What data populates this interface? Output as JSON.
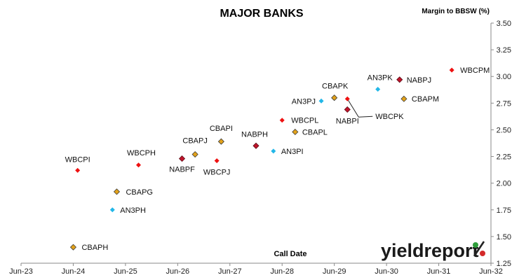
{
  "chart_data": {
    "type": "scatter",
    "title": "MAJOR BANKS",
    "ylabel": "Margin to BBSW (%)",
    "xlabel": "Call Date",
    "ylim": [
      1.25,
      3.5
    ],
    "y_ticks": [
      "1.25",
      "1.50",
      "1.75",
      "2.00",
      "2.25",
      "2.50",
      "2.75",
      "3.00",
      "3.25",
      "3.50"
    ],
    "x_ticks": [
      "Jun-23",
      "Jun-24",
      "Jun-25",
      "Jun-26",
      "Jun-27",
      "Jun-28",
      "Jun-29",
      "Jun-30",
      "Jun-31",
      "Jun-32"
    ],
    "xlim": [
      "Jun-23",
      "Jun-32"
    ],
    "grid": false,
    "colors": {
      "WBC": "#ee1111",
      "NAB": "#c0142b",
      "CBA": "#e3a21a",
      "ANZ": "#22b7e8"
    },
    "points": [
      {
        "label": "CBAPH",
        "x": "Jun-24",
        "y": 1.4,
        "issuer": "CBA"
      },
      {
        "label": "WBCPI",
        "x": "Jul-24",
        "y": 2.12,
        "issuer": "WBC"
      },
      {
        "label": "AN3PH",
        "x": "Mar-25",
        "y": 1.75,
        "issuer": "ANZ"
      },
      {
        "label": "CBAPG",
        "x": "Apr-25",
        "y": 1.92,
        "issuer": "CBA"
      },
      {
        "label": "WBCPH",
        "x": "Sep-25",
        "y": 2.17,
        "issuer": "WBC"
      },
      {
        "label": "NABPF",
        "x": "Jul-26",
        "y": 2.23,
        "issuer": "NAB"
      },
      {
        "label": "CBAPJ",
        "x": "Oct-26",
        "y": 2.27,
        "issuer": "CBA"
      },
      {
        "label": "WBCPJ",
        "x": "Mar-27",
        "y": 2.21,
        "issuer": "WBC"
      },
      {
        "label": "CBAPI",
        "x": "Apr-27",
        "y": 2.39,
        "issuer": "CBA"
      },
      {
        "label": "NABPH",
        "x": "Dec-27",
        "y": 2.35,
        "issuer": "NAB"
      },
      {
        "label": "AN3PI",
        "x": "Apr-28",
        "y": 2.3,
        "issuer": "ANZ"
      },
      {
        "label": "CBAPL",
        "x": "Sep-28",
        "y": 2.48,
        "issuer": "CBA"
      },
      {
        "label": "WBCPL",
        "x": "Jun-28",
        "y": 2.59,
        "issuer": "WBC"
      },
      {
        "label": "AN3PJ",
        "x": "Mar-29",
        "y": 2.77,
        "issuer": "ANZ"
      },
      {
        "label": "CBAPK",
        "x": "Jun-29",
        "y": 2.8,
        "issuer": "CBA"
      },
      {
        "label": "WBCPK",
        "x": "Sep-29",
        "y": 2.79,
        "issuer": "WBC"
      },
      {
        "label": "NABPI",
        "x": "Sep-29",
        "y": 2.69,
        "issuer": "NAB"
      },
      {
        "label": "AN3PK",
        "x": "Apr-30",
        "y": 2.88,
        "issuer": "ANZ"
      },
      {
        "label": "CBAPM",
        "x": "Oct-30",
        "y": 2.79,
        "issuer": "CBA"
      },
      {
        "label": "NABPJ",
        "x": "Sep-30",
        "y": 2.97,
        "issuer": "NAB"
      },
      {
        "label": "WBCPM",
        "x": "Sep-31",
        "y": 3.06,
        "issuer": "WBC"
      }
    ]
  },
  "branding": {
    "wordmark": "yieldreport",
    "percent": "%"
  }
}
